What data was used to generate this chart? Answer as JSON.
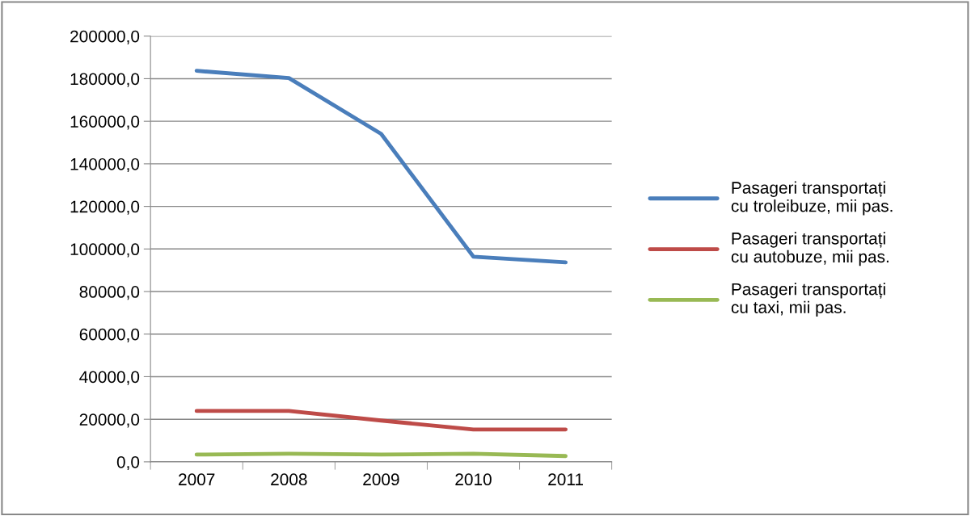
{
  "chart_data": {
    "type": "line",
    "categories": [
      "2007",
      "2008",
      "2009",
      "2010",
      "2011"
    ],
    "series": [
      {
        "name": "Pasageri transportați cu troleibuze, mii pas.",
        "color": "#4a7ebb",
        "values": [
          183700,
          180300,
          154100,
          96400,
          93700
        ]
      },
      {
        "name": "Pasageri transportați cu autobuze, mii pas.",
        "color": "#be4b48",
        "values": [
          23900,
          23900,
          19400,
          15200,
          15200
        ]
      },
      {
        "name": "Pasageri transportați cu taxi, mii pas.",
        "color": "#98b954",
        "values": [
          3400,
          3800,
          3400,
          3800,
          2700
        ]
      }
    ],
    "ylim": [
      0,
      200000
    ],
    "yticks": [
      {
        "value": 0,
        "label": "0,0"
      },
      {
        "value": 20000,
        "label": "20000,0"
      },
      {
        "value": 40000,
        "label": "40000,0"
      },
      {
        "value": 60000,
        "label": "60000,0"
      },
      {
        "value": 80000,
        "label": "80000,0"
      },
      {
        "value": 100000,
        "label": "100000,0"
      },
      {
        "value": 120000,
        "label": "120000,0"
      },
      {
        "value": 140000,
        "label": "140000,0"
      },
      {
        "value": 160000,
        "label": "160000,0"
      },
      {
        "value": 180000,
        "label": "180000,0"
      },
      {
        "value": 200000,
        "label": "200000,0"
      }
    ],
    "grid": "y",
    "legend": "right",
    "marker": "none",
    "line_style": "solid"
  }
}
